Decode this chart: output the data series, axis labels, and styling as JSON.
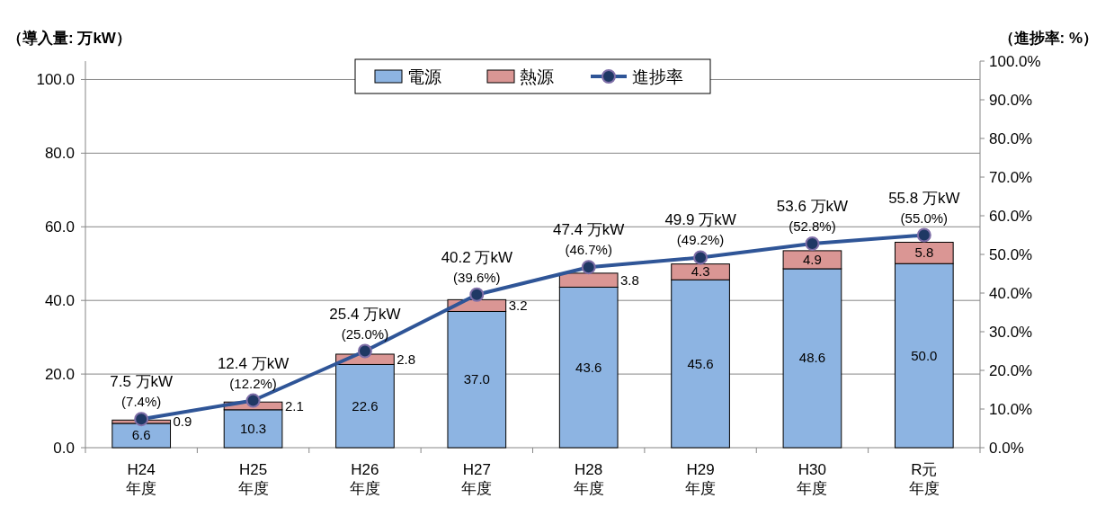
{
  "chart_data": {
    "type": "bar",
    "stacked": true,
    "categories": [
      "H24\n年度",
      "H25\n年度",
      "H26\n年度",
      "H27\n年度",
      "H28\n年度",
      "H29\n年度",
      "H30\n年度",
      "R元年度"
    ],
    "ylabel": "（導入量: 万kW）",
    "y2label": "（進捗率: %）",
    "ylim": [
      0,
      105
    ],
    "yticks": [
      {
        "value": 0,
        "label": "0.0"
      },
      {
        "value": 20,
        "label": "20.0"
      },
      {
        "value": 40,
        "label": "40.0"
      },
      {
        "value": 60,
        "label": "60.0"
      },
      {
        "value": 80,
        "label": "80.0"
      },
      {
        "value": 100,
        "label": "100.0"
      }
    ],
    "y2lim": [
      0,
      100
    ],
    "y2ticks": [
      {
        "value": 0,
        "label": "0.0%"
      },
      {
        "value": 10,
        "label": "10.0%"
      },
      {
        "value": 20,
        "label": "20.0%"
      },
      {
        "value": 30,
        "label": "30.0%"
      },
      {
        "value": 40,
        "label": "40.0%"
      },
      {
        "value": 50,
        "label": "50.0%"
      },
      {
        "value": 60,
        "label": "60.0%"
      },
      {
        "value": 70,
        "label": "70.0%"
      },
      {
        "value": 80,
        "label": "80.0%"
      },
      {
        "value": 90,
        "label": "90.0%"
      },
      {
        "value": 100,
        "label": "100.0%"
      }
    ],
    "grid": "y",
    "legend": "top",
    "totals": [
      "7.5 万kW",
      "12.4 万kW",
      "25.4 万kW",
      "40.2 万kW",
      "47.4 万kW",
      "49.9 万kW",
      "53.6 万kW",
      "55.8 万kW"
    ],
    "series": [
      {
        "name": "電源",
        "color": "#8db4e2",
        "values": [
          6.6,
          10.3,
          22.6,
          37.0,
          43.6,
          45.6,
          48.6,
          50.0
        ],
        "value_labels": [
          "6.6",
          "10.3",
          "22.6",
          "37.0",
          "43.6",
          "45.6",
          "48.6",
          "50.0"
        ]
      },
      {
        "name": "熱源",
        "color": "#da9694",
        "values": [
          0.9,
          2.1,
          2.8,
          3.2,
          3.8,
          4.3,
          4.9,
          5.8
        ],
        "value_labels": [
          "0.9",
          "2.1",
          "2.8",
          "3.2",
          "3.8",
          "4.3",
          "4.9",
          "5.8"
        ]
      },
      {
        "name": "進捗率",
        "type": "line",
        "axis": "y2",
        "marker": "circle",
        "color": "#2f5597",
        "values": [
          7.4,
          12.2,
          25.0,
          39.6,
          46.7,
          49.2,
          52.8,
          55.0
        ],
        "value_labels": [
          "(7.4%)",
          "(12.2%)",
          "(25.0%)",
          "(39.6%)",
          "(46.7%)",
          "(49.2%)",
          "(52.8%)",
          "(55.0%)"
        ]
      }
    ]
  }
}
